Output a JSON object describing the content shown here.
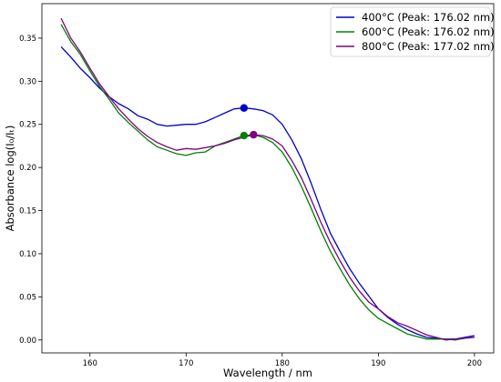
{
  "chart_data": {
    "type": "line",
    "xlabel": "Wavelength / nm",
    "ylabel": "Absorbance log(I₀/Iₜ)",
    "xlim": [
      155,
      202
    ],
    "ylim": [
      -0.015,
      0.39
    ],
    "xticks": [
      160,
      170,
      180,
      190,
      200
    ],
    "yticks": [
      0.0,
      0.05,
      0.1,
      0.15,
      0.2,
      0.25,
      0.3,
      0.35
    ],
    "ytick_labels": [
      "0.00",
      "0.05",
      "0.10",
      "0.15",
      "0.20",
      "0.25",
      "0.30",
      "0.35"
    ],
    "grid": false,
    "legend_position": "top-right",
    "series": [
      {
        "name": "400°C (Peak: 176.02 nm)",
        "color": "#0000cc",
        "peak": {
          "x": 176.02,
          "y": 0.269
        },
        "x": [
          157,
          158,
          159,
          160,
          161,
          162,
          163,
          164,
          165,
          166,
          167,
          168,
          169,
          170,
          171,
          172,
          173,
          174,
          175,
          176,
          177,
          178,
          179,
          180,
          181,
          182,
          183,
          184,
          185,
          186,
          187,
          188,
          189,
          190,
          191,
          192,
          193,
          194,
          195,
          196,
          197,
          198,
          199,
          200
        ],
        "y": [
          0.34,
          0.328,
          0.315,
          0.304,
          0.292,
          0.282,
          0.274,
          0.268,
          0.26,
          0.256,
          0.25,
          0.248,
          0.249,
          0.25,
          0.25,
          0.253,
          0.258,
          0.263,
          0.268,
          0.269,
          0.268,
          0.266,
          0.261,
          0.25,
          0.232,
          0.21,
          0.182,
          0.152,
          0.124,
          0.103,
          0.083,
          0.066,
          0.051,
          0.036,
          0.026,
          0.018,
          0.012,
          0.007,
          0.003,
          0.002,
          0.001,
          0.001,
          0.003,
          0.005
        ]
      },
      {
        "name": "600°C (Peak: 176.02 nm)",
        "color": "#008000",
        "peak": {
          "x": 176.02,
          "y": 0.237
        },
        "x": [
          157,
          158,
          159,
          160,
          161,
          162,
          163,
          164,
          165,
          166,
          167,
          168,
          169,
          170,
          171,
          172,
          173,
          174,
          175,
          176,
          177,
          178,
          179,
          180,
          181,
          182,
          183,
          184,
          185,
          186,
          187,
          188,
          189,
          190,
          191,
          192,
          193,
          194,
          195,
          196,
          197,
          198,
          199,
          200
        ],
        "y": [
          0.366,
          0.346,
          0.331,
          0.312,
          0.294,
          0.279,
          0.263,
          0.252,
          0.242,
          0.232,
          0.224,
          0.22,
          0.216,
          0.214,
          0.217,
          0.218,
          0.225,
          0.229,
          0.233,
          0.237,
          0.238,
          0.235,
          0.229,
          0.218,
          0.2,
          0.178,
          0.153,
          0.127,
          0.103,
          0.083,
          0.064,
          0.048,
          0.035,
          0.025,
          0.019,
          0.013,
          0.007,
          0.004,
          0.001,
          0.001,
          0.001,
          0.0,
          0.002,
          0.003
        ]
      },
      {
        "name": "800°C (Peak: 177.02 nm)",
        "color": "#800080",
        "peak": {
          "x": 177.02,
          "y": 0.238
        },
        "x": [
          157,
          158,
          159,
          160,
          161,
          162,
          163,
          164,
          165,
          166,
          167,
          168,
          169,
          170,
          171,
          172,
          173,
          174,
          175,
          176,
          177,
          178,
          179,
          180,
          181,
          182,
          183,
          184,
          185,
          186,
          187,
          188,
          189,
          190,
          191,
          192,
          193,
          194,
          195,
          196,
          197,
          198,
          199,
          200
        ],
        "y": [
          0.373,
          0.35,
          0.334,
          0.315,
          0.297,
          0.282,
          0.268,
          0.256,
          0.245,
          0.236,
          0.229,
          0.224,
          0.22,
          0.222,
          0.221,
          0.223,
          0.225,
          0.228,
          0.232,
          0.235,
          0.238,
          0.237,
          0.233,
          0.225,
          0.208,
          0.188,
          0.163,
          0.137,
          0.113,
          0.092,
          0.073,
          0.057,
          0.044,
          0.036,
          0.027,
          0.02,
          0.016,
          0.011,
          0.006,
          0.003,
          0.0,
          0.001,
          0.002,
          0.003
        ]
      }
    ]
  }
}
